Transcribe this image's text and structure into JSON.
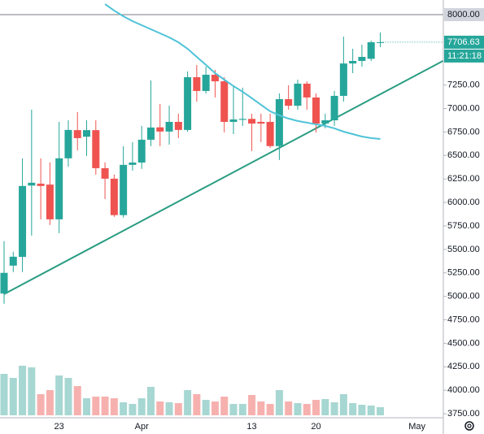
{
  "chart_data": {
    "type": "candlestick",
    "categories": [
      null,
      null,
      null,
      null,
      null,
      null,
      "23",
      null,
      null,
      null,
      null,
      null,
      null,
      null,
      null,
      "Apr",
      null,
      null,
      null,
      null,
      null,
      null,
      null,
      null,
      null,
      null,
      null,
      "13",
      null,
      null,
      null,
      null,
      null,
      null,
      "20",
      null,
      null,
      null,
      null,
      null,
      null,
      null,
      null,
      null,
      null,
      "May",
      null,
      null
    ],
    "open": [
      5030,
      5327,
      5420,
      6180,
      6200,
      6190,
      5820,
      6470,
      6770,
      6700,
      6770,
      6365,
      6253,
      5865,
      6400,
      6425,
      6668,
      6800,
      6755,
      6858,
      6772,
      7334,
      7187,
      7360,
      7290,
      6858,
      6880,
      6890,
      6858,
      6858,
      6600,
      7100,
      7030,
      7265,
      7118,
      6840,
      6875,
      7135,
      7480,
      7507,
      7530,
      7700,
      null,
      null,
      null,
      null,
      null,
      null
    ],
    "high": [
      5587,
      5474,
      6469,
      6988,
      6469,
      6426,
      6858,
      6875,
      6962,
      6875,
      6875,
      6426,
      6296,
      6599,
      6642,
      6815,
      7299,
      7048,
      7031,
      6945,
      7395,
      7464,
      7446,
      7412,
      7334,
      7247,
      7222,
      6945,
      6945,
      6945,
      7161,
      7247,
      7308,
      7291,
      7161,
      6945,
      7187,
      7766,
      7637,
      7680,
      7723,
      7810,
      null,
      null,
      null,
      null,
      null,
      null
    ],
    "low": [
      4921,
      5258,
      5258,
      5647,
      5820,
      5760,
      5673,
      6382,
      6555,
      6495,
      6296,
      6036,
      5846,
      5838,
      6339,
      6357,
      6599,
      6599,
      6616,
      6685,
      6754,
      7074,
      7161,
      7118,
      6746,
      6728,
      6815,
      6547,
      6642,
      6581,
      6452,
      6988,
      6988,
      6988,
      6746,
      6789,
      6815,
      7074,
      7377,
      7446,
      7507,
      7654,
      null,
      null,
      null,
      null,
      null,
      null
    ],
    "close": [
      5250,
      5422,
      6175,
      6210,
      6175,
      5820,
      6470,
      6772,
      6685,
      6770,
      6365,
      6253,
      5865,
      6400,
      6425,
      6668,
      6798,
      6755,
      6858,
      6772,
      7334,
      7187,
      7360,
      7290,
      6858,
      6884,
      6890,
      6840,
      6840,
      6600,
      7100,
      7030,
      7265,
      7118,
      6840,
      6875,
      7135,
      7480,
      7507,
      7550,
      7706,
      7706.63,
      null,
      null,
      null,
      null,
      null,
      null
    ],
    "volume": [
      51,
      46,
      61,
      59,
      26,
      31,
      49,
      46,
      36,
      21,
      23,
      23,
      21,
      16,
      14,
      21,
      35,
      17,
      16,
      15,
      31,
      26,
      19,
      17,
      23,
      14,
      14,
      25,
      17,
      14,
      31,
      17,
      15,
      14,
      19,
      20,
      16,
      26,
      15,
      13,
      12,
      10,
      null,
      null,
      null,
      null,
      null,
      null
    ],
    "volume_lim": [
      0,
      100
    ],
    "ma": [
      null,
      null,
      null,
      null,
      null,
      null,
      null,
      null,
      null,
      null,
      null,
      8112,
      8043,
      7983,
      7931,
      7888,
      7844,
      7801,
      7758,
      7706,
      7637,
      7550,
      7464,
      7377,
      7308,
      7239,
      7179,
      7110,
      7040,
      6971,
      6928,
      6893,
      6867,
      6850,
      6832,
      6815,
      6789,
      6754,
      6728,
      6702,
      6685,
      6676,
      null,
      null,
      null,
      null,
      null,
      null
    ],
    "ma_color": "#4fc3d8",
    "trendline": {
      "points": [
        [
          0,
          5024
        ],
        [
          47,
          7464
        ]
      ],
      "color": "#2a9d82"
    },
    "up_color": "#26a69a",
    "down_color": "#ef5350",
    "volume_up_color": "#a7d7d2",
    "volume_down_color": "#f6b1af",
    "ylim": [
      3707,
      8156
    ],
    "yticks": [
      {
        "value": 3750,
        "label": "3750.00"
      },
      {
        "value": 4000,
        "label": "4000.00"
      },
      {
        "value": 4250,
        "label": "4250.00"
      },
      {
        "value": 4500,
        "label": "4500.00"
      },
      {
        "value": 4750,
        "label": "4750.00"
      },
      {
        "value": 5000,
        "label": "5000.00"
      },
      {
        "value": 5250,
        "label": "5250.00"
      },
      {
        "value": 5500,
        "label": "5500.00"
      },
      {
        "value": 5750,
        "label": "5750.00"
      },
      {
        "value": 6000,
        "label": "6000.00"
      },
      {
        "value": 6250,
        "label": "6250.00"
      },
      {
        "value": 6500,
        "label": "6500.00"
      },
      {
        "value": 6750,
        "label": "6750.00"
      },
      {
        "value": 7000,
        "label": "7000.00"
      },
      {
        "value": 7250,
        "label": "7250.00"
      }
    ],
    "hline": {
      "value": 8000,
      "label": "8000.00"
    },
    "countdown": "11:21:18",
    "grid": false
  }
}
